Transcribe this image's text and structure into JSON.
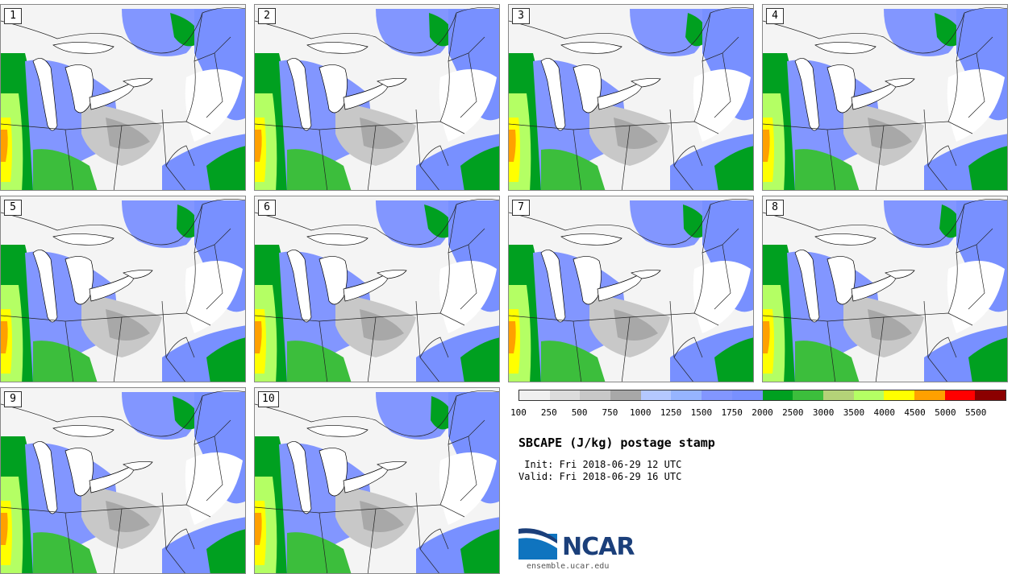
{
  "members": [
    "1",
    "2",
    "3",
    "4",
    "5",
    "6",
    "7",
    "8",
    "9",
    "10"
  ],
  "colorbar": {
    "colors": [
      "#f0f0f0",
      "#dcdcdc",
      "#c8c8c8",
      "#a8a8a8",
      "#b4c8ff",
      "#96b4ff",
      "#8296ff",
      "#7890ff",
      "#00a020",
      "#3cbe3c",
      "#b4d278",
      "#b4ff64",
      "#ffff00",
      "#ffa000",
      "#ff0000",
      "#8b0000"
    ],
    "ticks": [
      "100",
      "250",
      "500",
      "750",
      "1000",
      "1250",
      "1500",
      "1750",
      "2000",
      "2500",
      "3000",
      "3500",
      "4000",
      "4500",
      "5000",
      "5500"
    ]
  },
  "title": "SBCAPE (J/kg) postage stamp",
  "init": " Init: Fri 2018-06-29 12 UTC",
  "valid": "Valid: Fri 2018-06-29 16 UTC",
  "logo_text": "NCAR",
  "url": "ensemble.ucar.edu"
}
